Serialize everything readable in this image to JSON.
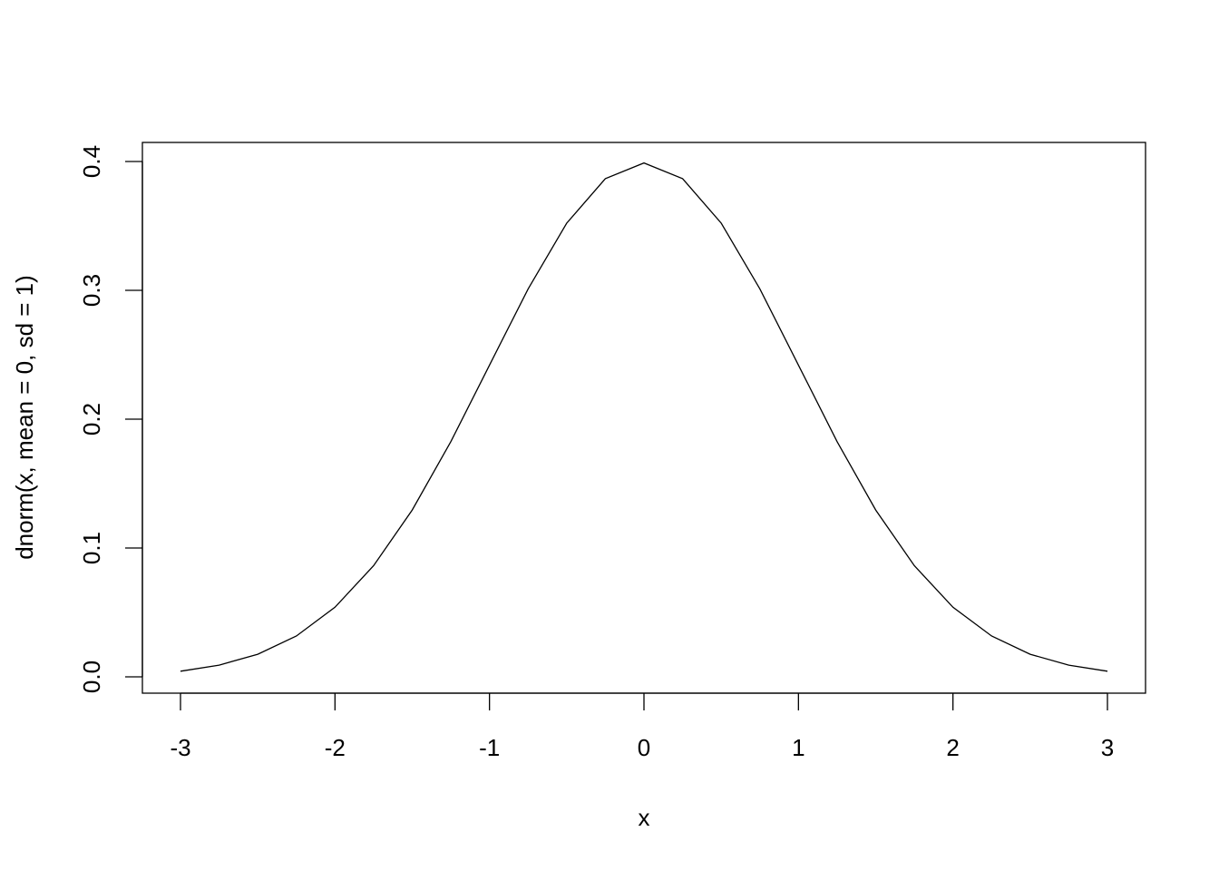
{
  "chart_data": {
    "type": "line",
    "title": "",
    "xlabel": "x",
    "ylabel": "dnorm(x, mean = 0, sd = 1)",
    "xlim": [
      -3,
      3
    ],
    "ylim": [
      0,
      0.4
    ],
    "grid": false,
    "x_ticks": [
      "-3",
      "-2",
      "-1",
      "0",
      "1",
      "2",
      "3"
    ],
    "y_ticks": [
      "0.0",
      "0.1",
      "0.2",
      "0.3",
      "0.4"
    ],
    "line_color": "#000000",
    "series": [
      {
        "x": [
          -3,
          -2.75,
          -2.5,
          -2.25,
          -2,
          -1.75,
          -1.5,
          -1.25,
          -1,
          -0.75,
          -0.5,
          -0.25,
          0,
          0.25,
          0.5,
          0.75,
          1,
          1.25,
          1.5,
          1.75,
          2,
          2.25,
          2.5,
          2.75,
          3
        ],
        "y": [
          0.0044,
          0.0091,
          0.0175,
          0.0317,
          0.054,
          0.0863,
          0.1295,
          0.1826,
          0.242,
          0.3011,
          0.3521,
          0.3867,
          0.3989,
          0.3867,
          0.3521,
          0.3011,
          0.242,
          0.1826,
          0.1295,
          0.0863,
          0.054,
          0.0317,
          0.0175,
          0.0091,
          0.0044
        ]
      }
    ]
  }
}
